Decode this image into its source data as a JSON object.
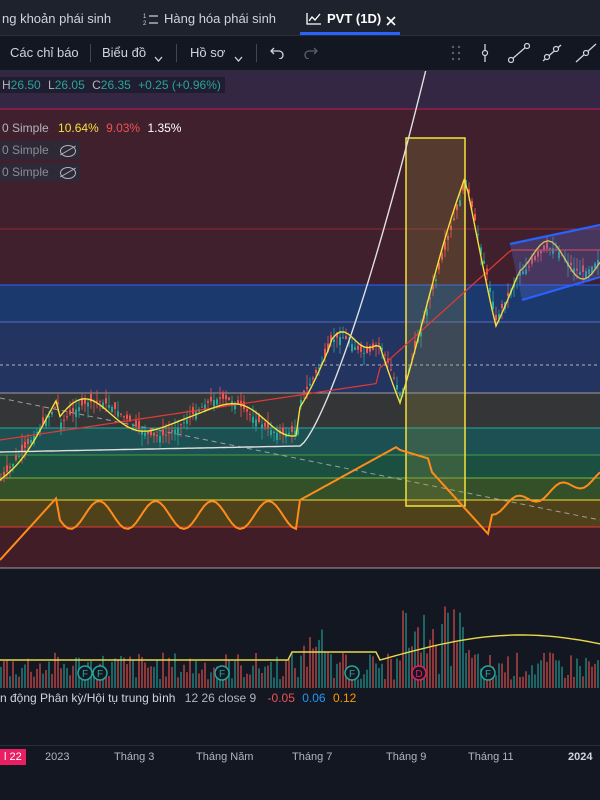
{
  "tabs": [
    {
      "label": "ng khoản phái sinh",
      "active": false
    },
    {
      "label": "Hàng hóa phái sinh",
      "active": false
    },
    {
      "label": "PVT (1D)",
      "active": true
    }
  ],
  "toolbar": {
    "indicators": "Các chỉ báo",
    "chart": "Biểu đồ",
    "profile": "Hồ sơ"
  },
  "ohlc": {
    "h_label": "H",
    "h": "26.50",
    "l_label": "L",
    "l": "26.05",
    "c_label": "C",
    "c": "26.35",
    "change": "+0.25 (+0.96%)"
  },
  "indicators": [
    {
      "name": "0 Simple",
      "v1": "10.64%",
      "v2": "9.03%",
      "v3": "1.35%"
    },
    {
      "name": "0 Simple"
    },
    {
      "name": "0 Simple"
    }
  ],
  "macd": {
    "label": "n động Phân kỳ/Hội tụ trung bình",
    "params": "12 26 close 9",
    "v1": "-0.05",
    "v2": "0.06",
    "v3": "0.12"
  },
  "event_markers": [
    {
      "glyph": "F"
    },
    {
      "glyph": "F"
    },
    {
      "glyph": "F"
    },
    {
      "glyph": "F"
    },
    {
      "glyph": "D"
    },
    {
      "glyph": "F"
    }
  ],
  "time_axis": [
    "l 22",
    "2023",
    "Tháng 3",
    "Tháng Năm",
    "Tháng 7",
    "Tháng 9",
    "Tháng 11",
    "2024"
  ],
  "colors": {
    "background": "#131722",
    "up": "#26a69a",
    "down": "#ef5350",
    "ma_yellow": "#f5e13c",
    "ma_red": "#e53935",
    "ma_white": "#e0e0e0",
    "orange_line": "#ff8c1a",
    "channel_blue": "#2962ff"
  }
}
